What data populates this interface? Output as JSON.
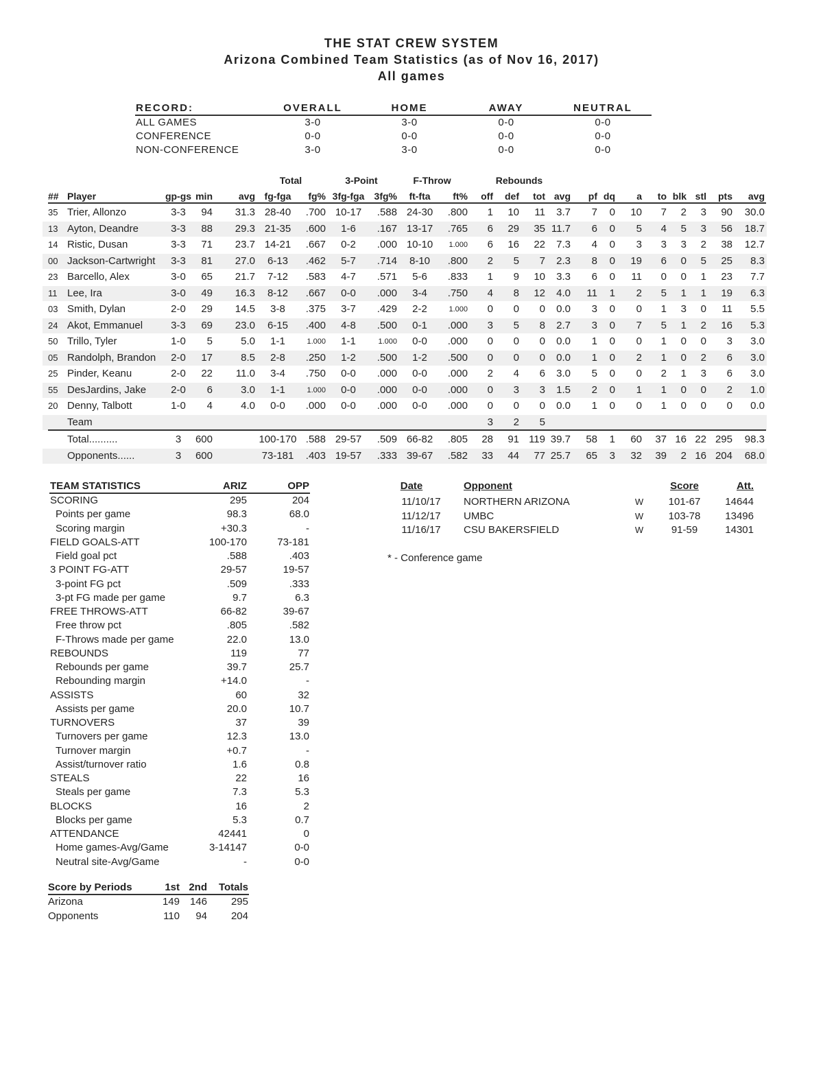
{
  "header": {
    "line1": "THE STAT CREW SYSTEM",
    "line2": "Arizona Combined Team Statistics (as of Nov 16, 2017)",
    "line3": "All games"
  },
  "record": {
    "headers": [
      "RECORD:",
      "OVERALL",
      "HOME",
      "AWAY",
      "NEUTRAL"
    ],
    "rows": [
      [
        "ALL GAMES",
        "3-0",
        "3-0",
        "0-0",
        "0-0"
      ],
      [
        "CONFERENCE",
        "0-0",
        "0-0",
        "0-0",
        "0-0"
      ],
      [
        "NON-CONFERENCE",
        "3-0",
        "3-0",
        "0-0",
        "0-0"
      ]
    ]
  },
  "players": {
    "group_headers": [
      "Total",
      "3-Point",
      "F-Throw",
      "Rebounds"
    ],
    "columns": [
      "##",
      "Player",
      "gp-gs",
      "min",
      "avg",
      "fg-fga",
      "fg%",
      "3fg-fga",
      "3fg%",
      "ft-fta",
      "ft%",
      "off",
      "def",
      "tot",
      "avg",
      "pf",
      "dq",
      "a",
      "to",
      "blk",
      "stl",
      "pts",
      "avg"
    ],
    "rows": [
      [
        "35",
        "Trier, Allonzo",
        "3-3",
        "94",
        "31.3",
        "28-40",
        ".700",
        "10-17",
        ".588",
        "24-30",
        ".800",
        "1",
        "10",
        "11",
        "3.7",
        "7",
        "0",
        "10",
        "7",
        "2",
        "3",
        "90",
        "30.0"
      ],
      [
        "13",
        "Ayton, Deandre",
        "3-3",
        "88",
        "29.3",
        "21-35",
        ".600",
        "1-6",
        ".167",
        "13-17",
        ".765",
        "6",
        "29",
        "35",
        "11.7",
        "6",
        "0",
        "5",
        "4",
        "5",
        "3",
        "56",
        "18.7"
      ],
      [
        "14",
        "Ristic, Dusan",
        "3-3",
        "71",
        "23.7",
        "14-21",
        ".667",
        "0-2",
        ".000",
        "10-10",
        "1.000",
        "6",
        "16",
        "22",
        "7.3",
        "4",
        "0",
        "3",
        "3",
        "3",
        "2",
        "38",
        "12.7"
      ],
      [
        "00",
        "Jackson-Cartwright",
        "3-3",
        "81",
        "27.0",
        "6-13",
        ".462",
        "5-7",
        ".714",
        "8-10",
        ".800",
        "2",
        "5",
        "7",
        "2.3",
        "8",
        "0",
        "19",
        "6",
        "0",
        "5",
        "25",
        "8.3"
      ],
      [
        "23",
        "Barcello, Alex",
        "3-0",
        "65",
        "21.7",
        "7-12",
        ".583",
        "4-7",
        ".571",
        "5-6",
        ".833",
        "1",
        "9",
        "10",
        "3.3",
        "6",
        "0",
        "11",
        "0",
        "0",
        "1",
        "23",
        "7.7"
      ],
      [
        "11",
        "Lee, Ira",
        "3-0",
        "49",
        "16.3",
        "8-12",
        ".667",
        "0-0",
        ".000",
        "3-4",
        ".750",
        "4",
        "8",
        "12",
        "4.0",
        "11",
        "1",
        "2",
        "5",
        "1",
        "1",
        "19",
        "6.3"
      ],
      [
        "03",
        "Smith, Dylan",
        "2-0",
        "29",
        "14.5",
        "3-8",
        ".375",
        "3-7",
        ".429",
        "2-2",
        "1.000",
        "0",
        "0",
        "0",
        "0.0",
        "3",
        "0",
        "0",
        "1",
        "3",
        "0",
        "11",
        "5.5"
      ],
      [
        "24",
        "Akot, Emmanuel",
        "3-3",
        "69",
        "23.0",
        "6-15",
        ".400",
        "4-8",
        ".500",
        "0-1",
        ".000",
        "3",
        "5",
        "8",
        "2.7",
        "3",
        "0",
        "7",
        "5",
        "1",
        "2",
        "16",
        "5.3"
      ],
      [
        "50",
        "Trillo, Tyler",
        "1-0",
        "5",
        "5.0",
        "1-1",
        "1.000",
        "1-1",
        "1.000",
        "0-0",
        ".000",
        "0",
        "0",
        "0",
        "0.0",
        "1",
        "0",
        "0",
        "1",
        "0",
        "0",
        "3",
        "3.0"
      ],
      [
        "05",
        "Randolph, Brandon",
        "2-0",
        "17",
        "8.5",
        "2-8",
        ".250",
        "1-2",
        ".500",
        "1-2",
        ".500",
        "0",
        "0",
        "0",
        "0.0",
        "1",
        "0",
        "2",
        "1",
        "0",
        "2",
        "6",
        "3.0"
      ],
      [
        "25",
        "Pinder, Keanu",
        "2-0",
        "22",
        "11.0",
        "3-4",
        ".750",
        "0-0",
        ".000",
        "0-0",
        ".000",
        "2",
        "4",
        "6",
        "3.0",
        "5",
        "0",
        "0",
        "2",
        "1",
        "3",
        "6",
        "3.0"
      ],
      [
        "55",
        "DesJardins, Jake",
        "2-0",
        "6",
        "3.0",
        "1-1",
        "1.000",
        "0-0",
        ".000",
        "0-0",
        ".000",
        "0",
        "3",
        "3",
        "1.5",
        "2",
        "0",
        "1",
        "1",
        "0",
        "0",
        "2",
        "1.0"
      ],
      [
        "20",
        "Denny, Talbott",
        "1-0",
        "4",
        "4.0",
        "0-0",
        ".000",
        "0-0",
        ".000",
        "0-0",
        ".000",
        "0",
        "0",
        "0",
        "0.0",
        "1",
        "0",
        "0",
        "1",
        "0",
        "0",
        "0",
        "0.0"
      ],
      [
        "",
        "Team",
        "",
        "",
        "",
        "",
        "",
        "",
        "",
        "",
        "",
        "3",
        "2",
        "5",
        "",
        "",
        "",
        "",
        "",
        "",
        "",
        "",
        ""
      ],
      [
        "",
        "Total..........",
        "3",
        "600",
        "",
        "100-170",
        ".588",
        "29-57",
        ".509",
        "66-82",
        ".805",
        "28",
        "91",
        "119",
        "39.7",
        "58",
        "1",
        "60",
        "37",
        "16",
        "22",
        "295",
        "98.3"
      ],
      [
        "",
        "Opponents......",
        "3",
        "600",
        "",
        "73-181",
        ".403",
        "19-57",
        ".333",
        "39-67",
        ".582",
        "33",
        "44",
        "77",
        "25.7",
        "65",
        "3",
        "32",
        "39",
        "2",
        "16",
        "204",
        "68.0"
      ]
    ]
  },
  "team_stats": {
    "headers": [
      "TEAM STATISTICS",
      "ARIZ",
      "OPP"
    ],
    "rows": [
      [
        "SCORING",
        "295",
        "204",
        0
      ],
      [
        "Points per game",
        "98.3",
        "68.0",
        1
      ],
      [
        "Scoring margin",
        "+30.3",
        "-",
        1
      ],
      [
        "FIELD GOALS-ATT",
        "100-170",
        "73-181",
        0
      ],
      [
        "Field goal pct",
        ".588",
        ".403",
        1
      ],
      [
        "3 POINT FG-ATT",
        "29-57",
        "19-57",
        0
      ],
      [
        "3-point FG pct",
        ".509",
        ".333",
        1
      ],
      [
        "3-pt FG made per game",
        "9.7",
        "6.3",
        1
      ],
      [
        "FREE THROWS-ATT",
        "66-82",
        "39-67",
        0
      ],
      [
        "Free throw pct",
        ".805",
        ".582",
        1
      ],
      [
        "F-Throws made per game",
        "22.0",
        "13.0",
        1
      ],
      [
        "REBOUNDS",
        "119",
        "77",
        0
      ],
      [
        "Rebounds per game",
        "39.7",
        "25.7",
        1
      ],
      [
        "Rebounding margin",
        "+14.0",
        "-",
        1
      ],
      [
        "ASSISTS",
        "60",
        "32",
        0
      ],
      [
        "Assists per game",
        "20.0",
        "10.7",
        1
      ],
      [
        "TURNOVERS",
        "37",
        "39",
        0
      ],
      [
        "Turnovers per game",
        "12.3",
        "13.0",
        1
      ],
      [
        "Turnover margin",
        "+0.7",
        "-",
        1
      ],
      [
        "Assist/turnover ratio",
        "1.6",
        "0.8",
        1
      ],
      [
        "STEALS",
        "22",
        "16",
        0
      ],
      [
        "Steals per game",
        "7.3",
        "5.3",
        1
      ],
      [
        "BLOCKS",
        "16",
        "2",
        0
      ],
      [
        "Blocks per game",
        "5.3",
        "0.7",
        1
      ],
      [
        "ATTENDANCE",
        "42441",
        "0",
        0
      ],
      [
        "Home games-Avg/Game",
        "3-14147",
        "0-0",
        1
      ],
      [
        "Neutral site-Avg/Game",
        "-",
        "0-0",
        1
      ]
    ]
  },
  "score_by_periods": {
    "headers": [
      "Score by Periods",
      "1st",
      "2nd",
      "Totals"
    ],
    "rows": [
      [
        "Arizona",
        "149",
        "146",
        "295"
      ],
      [
        "Opponents",
        "110",
        "94",
        "204"
      ]
    ]
  },
  "games": {
    "headers": [
      "Date",
      "Opponent",
      "Score",
      "Att."
    ],
    "rows": [
      [
        "11/10/17",
        "NORTHERN ARIZONA",
        "W",
        "101-67",
        "14644"
      ],
      [
        "11/12/17",
        "UMBC",
        "W",
        "103-78",
        "13496"
      ],
      [
        "11/16/17",
        "CSU BAKERSFIELD",
        "W",
        "91-59",
        "14301"
      ]
    ],
    "footnote": "* - Conference game"
  }
}
